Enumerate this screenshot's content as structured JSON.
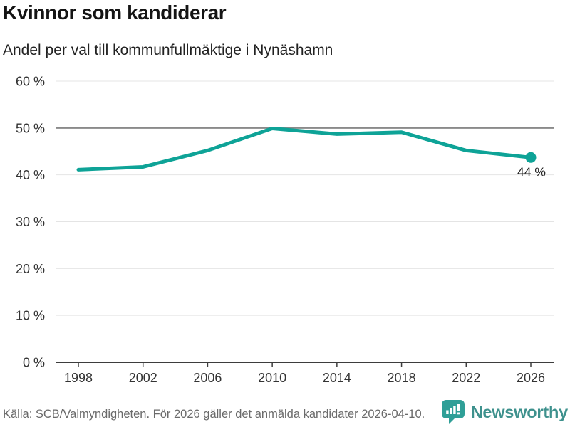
{
  "header": {
    "title": "Kvinnor som kandiderar",
    "subtitle": "Andel per val till kommunfullmäktige i Nynäshamn"
  },
  "chart_data": {
    "type": "line",
    "title": "Kvinnor som kandiderar",
    "subtitle": "Andel per val till kommunfullmäktige i Nynäshamn",
    "categories": [
      "1998",
      "2002",
      "2006",
      "2010",
      "2014",
      "2018",
      "2022",
      "2026"
    ],
    "values": [
      41.1,
      41.7,
      45.2,
      49.9,
      48.7,
      49.1,
      45.2,
      43.7
    ],
    "end_label": "44 %",
    "xlabel": "",
    "ylabel": "",
    "ylim": [
      0,
      60
    ],
    "y_ticks": [
      0,
      10,
      20,
      30,
      40,
      50,
      60
    ],
    "y_tick_suffix": " %",
    "emphasized_gridline": 50,
    "grid": true,
    "legend": "none",
    "marker_on_last_point": true
  },
  "footer": {
    "source": "Källa: SCB/Valmyndigheten. För 2026 gäller det anmälda kandidater 2026-04-10.",
    "brand": "Newsworthy"
  },
  "colors": {
    "accent_line": "#0ea397",
    "gridline": "#e4e4e4",
    "gridline_emphasis": "#8a8a8a",
    "axis": "#3d3d3d",
    "tick_label": "#333333",
    "end_label": "#222222",
    "brand_icon": "#2f9f97",
    "brand_text": "#3e918d"
  }
}
